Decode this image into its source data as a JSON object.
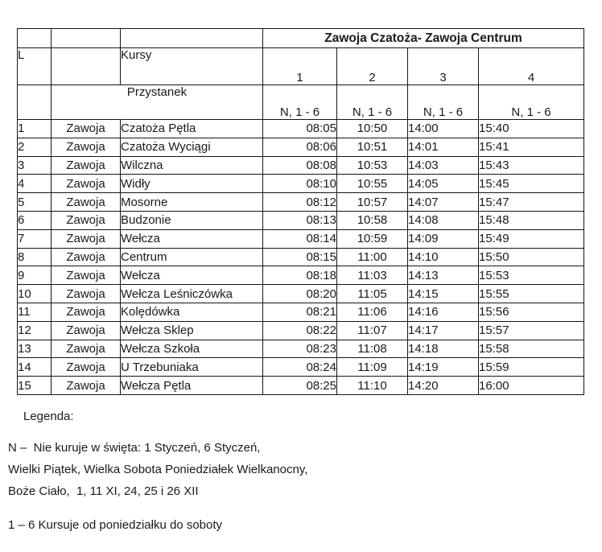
{
  "table": {
    "title": "Zawoja Czatoża-  Zawoja Centrum",
    "corner_label": "L",
    "kursy_label": "Kursy",
    "przystanek_label": "Przystanek",
    "course_numbers": [
      "1",
      "2",
      "3",
      "4"
    ],
    "service_codes": [
      "N, 1 - 6",
      "N, 1 - 6",
      "N, 1 - 6",
      "N, 1 - 6"
    ],
    "rows": [
      {
        "no": "1",
        "place": "Zawoja",
        "stop": "Czatoża Pętla",
        "times": [
          "08:05",
          "10:50",
          "14:00",
          "15:40"
        ]
      },
      {
        "no": "2",
        "place": "Zawoja",
        "stop": "Czatoża Wyciągi",
        "times": [
          "08:06",
          "10:51",
          "14:01",
          "15:41"
        ]
      },
      {
        "no": "3",
        "place": "Zawoja",
        "stop": "Wilczna",
        "times": [
          "08:08",
          "10:53",
          "14:03",
          "15:43"
        ]
      },
      {
        "no": "4",
        "place": "Zawoja",
        "stop": "Widły",
        "times": [
          "08:10",
          "10:55",
          "14:05",
          "15:45"
        ]
      },
      {
        "no": "5",
        "place": "Zawoja",
        "stop": "Mosorne",
        "times": [
          "08:12",
          "10:57",
          "14:07",
          "15:47"
        ]
      },
      {
        "no": "6",
        "place": "Zawoja",
        "stop": "Budzonie",
        "times": [
          "08:13",
          "10:58",
          "14:08",
          "15:48"
        ]
      },
      {
        "no": "7",
        "place": "Zawoja",
        "stop": "Wełcza",
        "times": [
          "08:14",
          "10:59",
          "14:09",
          "15:49"
        ]
      },
      {
        "no": "8",
        "place": "Zawoja",
        "stop": "Centrum",
        "times": [
          "08:15",
          "11:00",
          "14:10",
          "15:50"
        ]
      },
      {
        "no": "9",
        "place": "Zawoja",
        "stop": "Wełcza",
        "times": [
          "08:18",
          "11:03",
          "14:13",
          "15:53"
        ]
      },
      {
        "no": "10",
        "place": "Zawoja",
        "stop": "Wełcza Leśniczówka",
        "times": [
          "08:20",
          "11:05",
          "14:15",
          "15:55"
        ]
      },
      {
        "no": "11",
        "place": "Zawoja",
        "stop": "Kolędówka",
        "times": [
          "08:21",
          "11:06",
          "14:16",
          "15:56"
        ]
      },
      {
        "no": "12",
        "place": "Zawoja",
        "stop": "Wełcza Sklep",
        "times": [
          "08:22",
          "11:07",
          "14:17",
          "15:57"
        ]
      },
      {
        "no": "13",
        "place": "Zawoja",
        "stop": "Wełcza Szkoła",
        "times": [
          "08:23",
          "11:08",
          "14:18",
          "15:58"
        ]
      },
      {
        "no": "14",
        "place": "Zawoja",
        "stop": "U Trzebuniaka",
        "times": [
          "08:24",
          "11:09",
          "14:19",
          "15:59"
        ]
      },
      {
        "no": "15",
        "place": "Zawoja",
        "stop": "Wełcza Pętla",
        "times": [
          "08:25",
          "11:10",
          "14:20",
          "16:00"
        ]
      }
    ]
  },
  "legend": {
    "heading": "Legenda:",
    "line1": "N –  Nie kuruje w święta: 1 Styczeń, 6 Styczeń,",
    "line2": "Wielki Piątek, Wielka Sobota Poniedziałek Wielkanocny,",
    "line3": "Boże Ciało,  1, 11 XI, 24, 25 i 26 XII",
    "footer": "1 – 6 Kursuje od poniedziałku do soboty"
  }
}
